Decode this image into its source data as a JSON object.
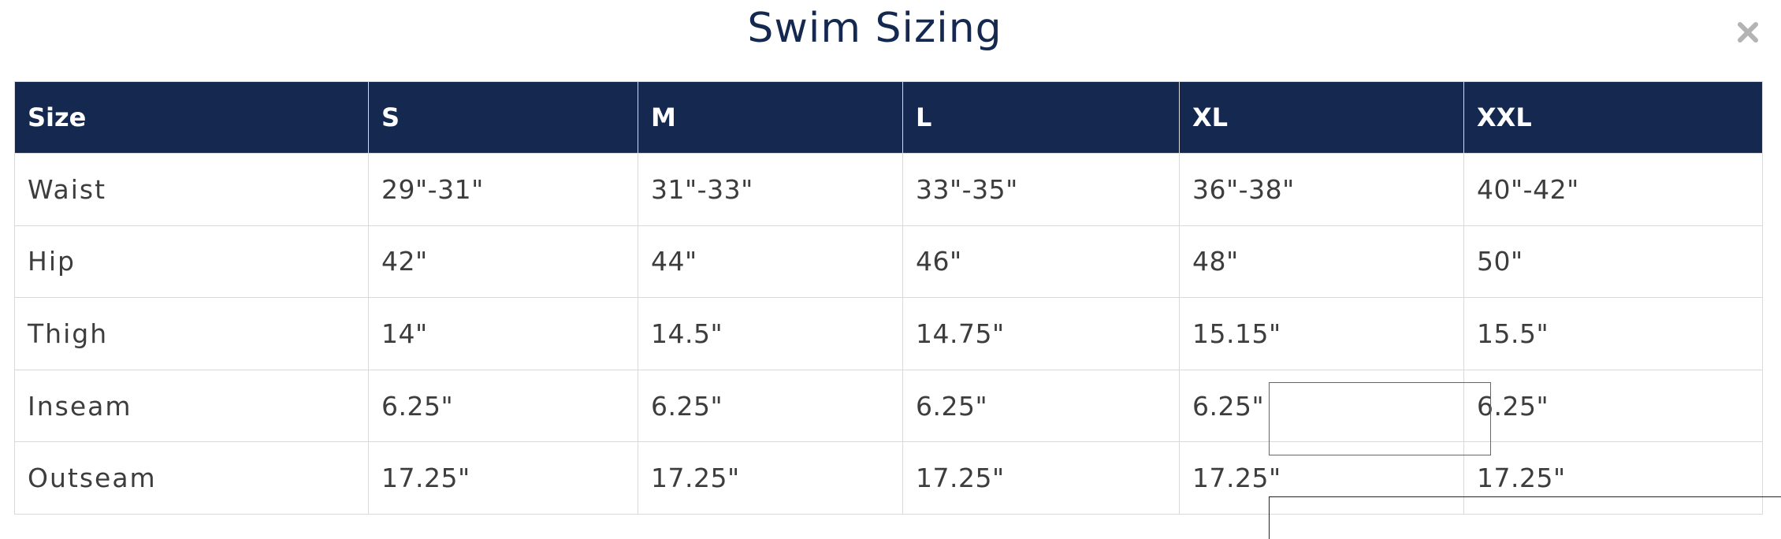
{
  "modal": {
    "title": "Swim Sizing",
    "close_icon": "close-x-icon"
  },
  "table": {
    "headers": [
      "Size",
      "S",
      "M",
      "L",
      "XL",
      "XXL"
    ],
    "rows": [
      {
        "label": "Waist",
        "values": [
          "29\"-31\"",
          "31\"-33\"",
          "33\"-35\"",
          "36\"-38\"",
          "40\"-42\""
        ]
      },
      {
        "label": "Hip",
        "values": [
          "42\"",
          "44\"",
          "46\"",
          "48\"",
          "50\""
        ]
      },
      {
        "label": "Thigh",
        "values": [
          "14\"",
          "14.5\"",
          "14.75\"",
          "15.15\"",
          "15.5\""
        ]
      },
      {
        "label": "Inseam",
        "values": [
          "6.25\"",
          "6.25\"",
          "6.25\"",
          "6.25\"",
          "6.25\""
        ]
      },
      {
        "label": "Outseam",
        "values": [
          "17.25\"",
          "17.25\"",
          "17.25\"",
          "17.25\"",
          "17.25\""
        ]
      }
    ]
  },
  "colors": {
    "header_bg": "#142850",
    "header_text": "#ffffff",
    "title_text": "#142850",
    "cell_text": "#3d3d3d",
    "border": "#d9d9d9"
  }
}
